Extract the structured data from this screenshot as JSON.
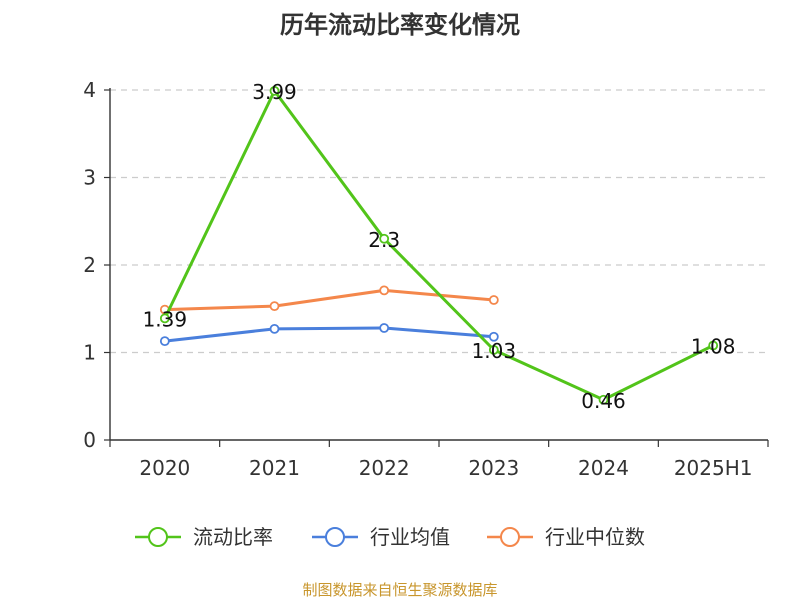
{
  "chart_data": {
    "type": "line",
    "title": "历年流动比率变化情况",
    "categories": [
      "2020",
      "2021",
      "2022",
      "2023",
      "2024",
      "2025H1"
    ],
    "ylim": [
      0,
      4
    ],
    "yticks": [
      "0",
      "1",
      "2",
      "3",
      "4"
    ],
    "grid": true,
    "legend_position": "bottom",
    "series": [
      {
        "name": "流动比率",
        "color": "#52c41a",
        "values": [
          1.39,
          3.99,
          2.3,
          1.03,
          0.46,
          1.08
        ],
        "labels": [
          "1.39",
          "3.99",
          "2.3",
          "1.03",
          "0.46",
          "1.08"
        ]
      },
      {
        "name": "行业均值",
        "color": "#4a7fdc",
        "values": [
          1.13,
          1.27,
          1.28,
          1.18,
          null,
          null
        ]
      },
      {
        "name": "行业中位数",
        "color": "#f4874b",
        "values": [
          1.49,
          1.53,
          1.71,
          1.6,
          null,
          null
        ]
      }
    ]
  },
  "footer": {
    "source": "制图数据来自恒生聚源数据库"
  }
}
